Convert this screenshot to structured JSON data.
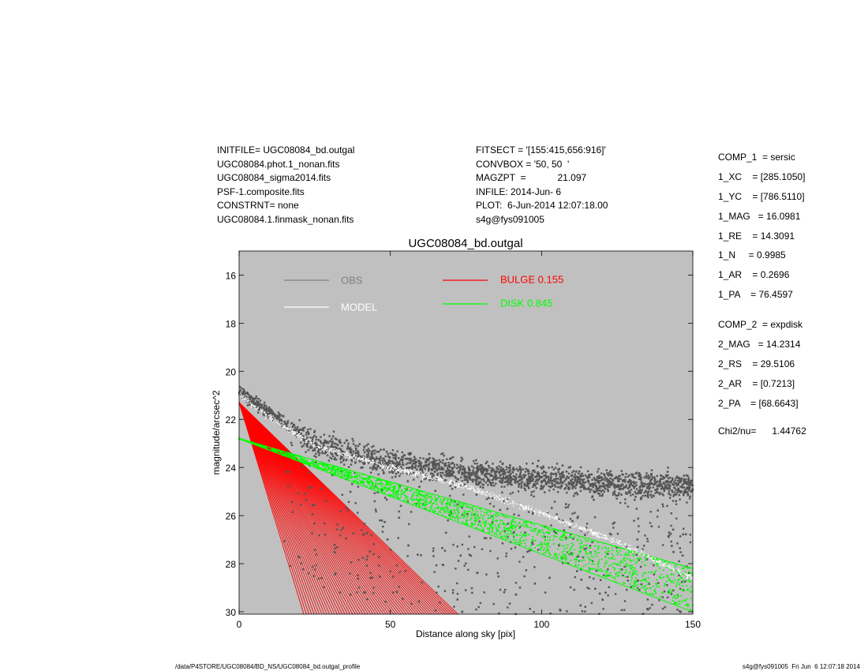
{
  "header_left": [
    "INITFILE= UGC08084_bd.outgal",
    "UGC08084.phot.1_nonan.fits",
    "UGC08084_sigma2014.fits",
    "PSF-1.composite.fits",
    "CONSTRNT= none",
    "UGC08084.1.finmask_nonan.fits"
  ],
  "header_right": [
    "FITSECT = '[155:415,656:916]'",
    "CONVBOX = '50, 50  '",
    "MAGZPT  =            21.097",
    "INFILE: 2014-Jun- 6",
    "PLOT:  6-Jun-2014 12:07:18.00",
    "s4g@fys091005"
  ],
  "params_comp1": [
    "COMP_1  = sersic",
    "1_XC    = [285.1050]",
    "1_YC    = [786.5110]",
    "1_MAG   = 16.0981",
    "1_RE    = 14.3091",
    "1_N     = 0.9985",
    "1_AR    = 0.2696",
    "1_PA    = 76.4597"
  ],
  "params_comp2": [
    "COMP_2  = expdisk",
    "2_MAG   = 14.2314",
    "2_RS    = 29.5106",
    "2_AR    = [0.7213]",
    "2_PA    = [68.6643]"
  ],
  "chi2": "Chi2/nu=      1.44762",
  "footer_left": "/data/P4STORE/UGC08084/BD_NS/UGC08084_bd.outgal_profile",
  "footer_right": "s4g@fys091005  Fri Jun  6 12:07:18 2014",
  "chart_data": {
    "type": "scatter",
    "title": "UGC08084_bd.outgal",
    "xlabel": "Distance along sky [pix]",
    "ylabel": "magnitude/arcsec^2",
    "xlim": [
      0,
      150
    ],
    "ylim": [
      30.1,
      15.0
    ],
    "y_inverted": true,
    "xticks": [
      "0",
      "50",
      "100",
      "150"
    ],
    "xtick_values": [
      0,
      50,
      100,
      150
    ],
    "yticks": [
      "16",
      "18",
      "20",
      "22",
      "24",
      "26",
      "28",
      "30"
    ],
    "ytick_values": [
      16,
      18,
      20,
      22,
      24,
      26,
      28,
      30
    ],
    "grid": false,
    "background": "#c0c0c0",
    "legend": [
      {
        "label": "OBS",
        "color": "#808080"
      },
      {
        "label": "MODEL",
        "color": "#ffffff"
      },
      {
        "label": "BULGE  0.155",
        "color": "#ff0000"
      },
      {
        "label": "DISK  0.845",
        "color": "#00ff00"
      }
    ],
    "series": [
      {
        "name": "OBS",
        "color": "#555555",
        "profile_x": [
          0,
          10,
          25,
          50,
          75,
          100,
          125,
          150
        ],
        "profile_y": [
          20.9,
          21.7,
          23.0,
          23.8,
          24.2,
          24.5,
          24.7,
          24.8
        ]
      },
      {
        "name": "MODEL",
        "color": "#ffffff",
        "profile_x": [
          0,
          10,
          25,
          50,
          75,
          100,
          125,
          150
        ],
        "profile_y": [
          21.0,
          21.9,
          23.1,
          24.0,
          24.8,
          25.9,
          27.1,
          28.6
        ]
      },
      {
        "name": "BULGE",
        "color": "#ff0000",
        "apex": [
          0,
          21.3
        ],
        "edge_x_at_30": [
          21.4,
          72.3
        ]
      },
      {
        "name": "DISK",
        "color": "#00ff00",
        "x": [
          0,
          150
        ],
        "upper_y": [
          22.8,
          28.2
        ],
        "lower_y": [
          22.8,
          30.0
        ]
      }
    ]
  }
}
